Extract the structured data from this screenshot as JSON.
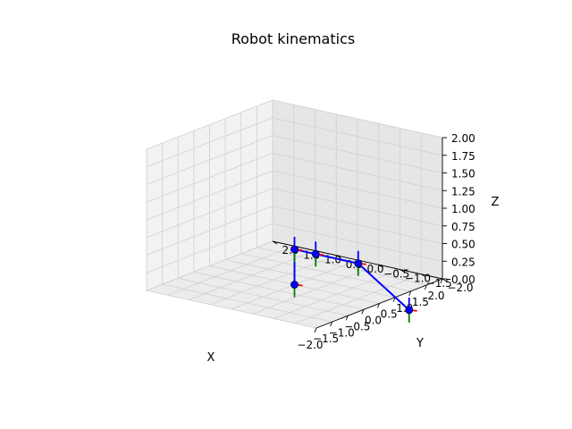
{
  "chart_data": {
    "type": "line3d",
    "title": "Robot kinematics",
    "xlabel": "X",
    "ylabel": "Y",
    "zlabel": "Z",
    "xlim": [
      -2.0,
      2.0
    ],
    "ylim": [
      -2.0,
      2.0
    ],
    "zlim": [
      0.0,
      2.0
    ],
    "xticks": [
      "−2.0",
      "−1.5",
      "−1.0",
      "−0.5",
      "0.0",
      "0.5",
      "1.0",
      "1.5",
      "2.0"
    ],
    "yticks": [
      "−2.0",
      "−1.5",
      "−1.0",
      "−0.5",
      "0.0",
      "0.5",
      "1.0",
      "1.5",
      "2.0"
    ],
    "zticks": [
      "0.00",
      "0.25",
      "0.50",
      "0.75",
      "1.00",
      "1.25",
      "1.50",
      "1.75",
      "2.00"
    ],
    "grid": true,
    "link_color": "#0000ff",
    "frame_colors": {
      "x": "#ff0000",
      "y": "#008000",
      "z": "#0000ff"
    },
    "joints": [
      {
        "x": 0.0,
        "y": 0.0,
        "z": 0.0
      },
      {
        "x": 0.0,
        "y": 0.0,
        "z": 0.5
      },
      {
        "x": 0.0,
        "y": -0.5,
        "z": 0.5
      },
      {
        "x": 0.0,
        "y": -1.5,
        "z": 0.5
      },
      {
        "x": 0.0,
        "y": -2.7,
        "z": 0.0
      }
    ]
  }
}
